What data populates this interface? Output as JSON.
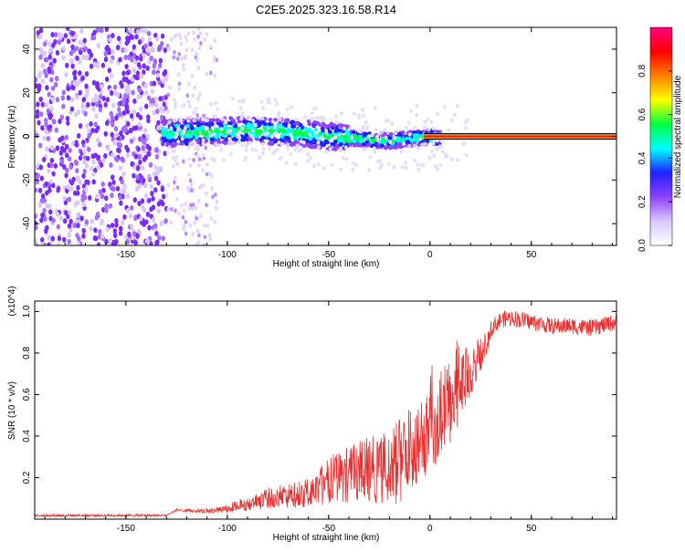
{
  "title": "C2E5.2025.323.16.58.R14",
  "colors": {
    "signal": "#e83030",
    "line_signal": "#ff2020",
    "background": "#ffffff",
    "axis": "#000000"
  },
  "chart_data": [
    {
      "type": "heatmap",
      "name": "spectrogram",
      "xlabel": "Height of straight line (km)",
      "ylabel": "Frequency (Hz)",
      "xlim": [
        -195,
        92
      ],
      "ylim": [
        -50,
        50
      ],
      "x_ticks": [
        -150,
        -100,
        -50,
        0,
        50
      ],
      "y_ticks": [
        -40,
        -20,
        0,
        20,
        40
      ],
      "colorbar": {
        "label": "Normalized spectral amplitude",
        "range": [
          0,
          1
        ],
        "ticks": [
          0.0,
          0.2,
          0.4,
          0.6,
          0.8
        ],
        "colormap": [
          "#ffffff",
          "#d8c8ff",
          "#9040ff",
          "#2020ff",
          "#00ffff",
          "#00ff40",
          "#ffff00",
          "#ff8000",
          "#ff0000",
          "#ff0080"
        ]
      },
      "features": {
        "noise_region_x": [
          -195,
          -130
        ],
        "scatter_region_x": [
          -130,
          -105
        ],
        "signal_start_x": -132,
        "signal_center_frequency": [
          [
            -130,
            1.5
          ],
          [
            -110,
            2
          ],
          [
            -90,
            3
          ],
          [
            -70,
            2
          ],
          [
            -50,
            0
          ],
          [
            -35,
            -1
          ],
          [
            -20,
            -2
          ],
          [
            -10,
            -1
          ],
          [
            0,
            0
          ],
          [
            5,
            -1
          ],
          [
            10,
            0
          ],
          [
            20,
            0
          ],
          [
            50,
            0
          ],
          [
            92,
            0
          ]
        ],
        "line_start_x": 5,
        "line_frequency": 0
      }
    },
    {
      "type": "line",
      "name": "snr",
      "xlabel": "Height of straight line (km)",
      "ylabel": "SNR (10 * v/v)",
      "multiplier_label": "(x10^4)",
      "xlim": [
        -195,
        92
      ],
      "ylim": [
        0,
        1.05
      ],
      "x_ticks": [
        -150,
        -100,
        -50,
        0,
        50
      ],
      "y_ticks": [
        0.2,
        0.4,
        0.6,
        0.8,
        1.0
      ],
      "series": [
        {
          "name": "SNR",
          "envelope": [
            [
              -195,
              0.02
            ],
            [
              -130,
              0.02
            ],
            [
              -125,
              0.05
            ],
            [
              -110,
              0.05
            ],
            [
              -100,
              0.07
            ],
            [
              -80,
              0.15
            ],
            [
              -60,
              0.2
            ],
            [
              -50,
              0.3
            ],
            [
              -40,
              0.35
            ],
            [
              -30,
              0.4
            ],
            [
              -20,
              0.42
            ],
            [
              -15,
              0.5
            ],
            [
              -10,
              0.55
            ],
            [
              -5,
              0.6
            ],
            [
              0,
              0.62
            ],
            [
              5,
              0.68
            ],
            [
              10,
              0.72
            ],
            [
              15,
              0.78
            ],
            [
              20,
              0.84
            ],
            [
              25,
              0.88
            ],
            [
              30,
              0.92
            ],
            [
              35,
              0.96
            ],
            [
              40,
              0.97
            ],
            [
              50,
              0.95
            ],
            [
              60,
              0.93
            ],
            [
              70,
              0.93
            ],
            [
              80,
              0.92
            ],
            [
              92,
              0.95
            ]
          ],
          "noise_fraction": [
            [
              -195,
              0.15
            ],
            [
              -130,
              0.15
            ],
            [
              -100,
              0.6
            ],
            [
              -50,
              0.75
            ],
            [
              -15,
              0.85
            ],
            [
              10,
              0.5
            ],
            [
              30,
              0.08
            ],
            [
              92,
              0.05
            ]
          ]
        }
      ]
    }
  ]
}
